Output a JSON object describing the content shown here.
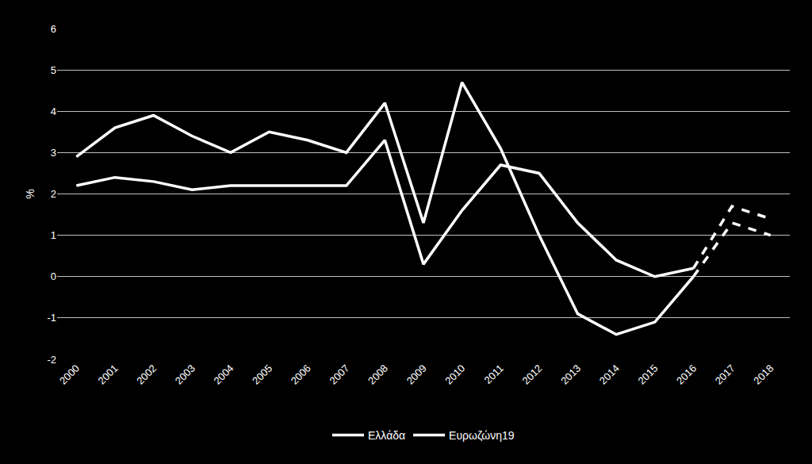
{
  "chart_data": {
    "type": "line",
    "y_label": "%",
    "categories": [
      "2000",
      "2001",
      "2002",
      "2003",
      "2004",
      "2005",
      "2006",
      "2007",
      "2008",
      "2009",
      "2010",
      "2011",
      "2012",
      "2013",
      "2014",
      "2015",
      "2016",
      "2017",
      "2018"
    ],
    "series": [
      {
        "name": "Ελλάδα",
        "color": "#ffffff",
        "values": [
          2.9,
          3.6,
          3.9,
          3.4,
          3.0,
          3.5,
          3.3,
          3.0,
          4.2,
          1.3,
          4.7,
          3.1,
          1.0,
          -0.9,
          -1.4,
          -1.1,
          0.0,
          null,
          null
        ],
        "forecast_values": [
          null,
          null,
          null,
          null,
          null,
          null,
          null,
          null,
          null,
          null,
          null,
          null,
          null,
          null,
          null,
          null,
          null,
          1.3,
          1.0
        ]
      },
      {
        "name": "Ευρωζώνη19",
        "color": "#ffffff",
        "values": [
          2.2,
          2.4,
          2.3,
          2.1,
          2.2,
          2.2,
          2.2,
          2.2,
          3.3,
          0.3,
          1.6,
          2.7,
          2.5,
          1.3,
          0.4,
          0.0,
          0.2,
          null,
          null
        ],
        "forecast_values": [
          null,
          null,
          null,
          null,
          null,
          null,
          null,
          null,
          null,
          null,
          null,
          null,
          null,
          null,
          null,
          null,
          null,
          1.7,
          1.4
        ]
      }
    ],
    "ylim": [
      -2,
      6
    ],
    "yticks": [
      -2,
      -1,
      0,
      1,
      2,
      3,
      4,
      5,
      6
    ],
    "grid": true,
    "legend": "bottom"
  }
}
